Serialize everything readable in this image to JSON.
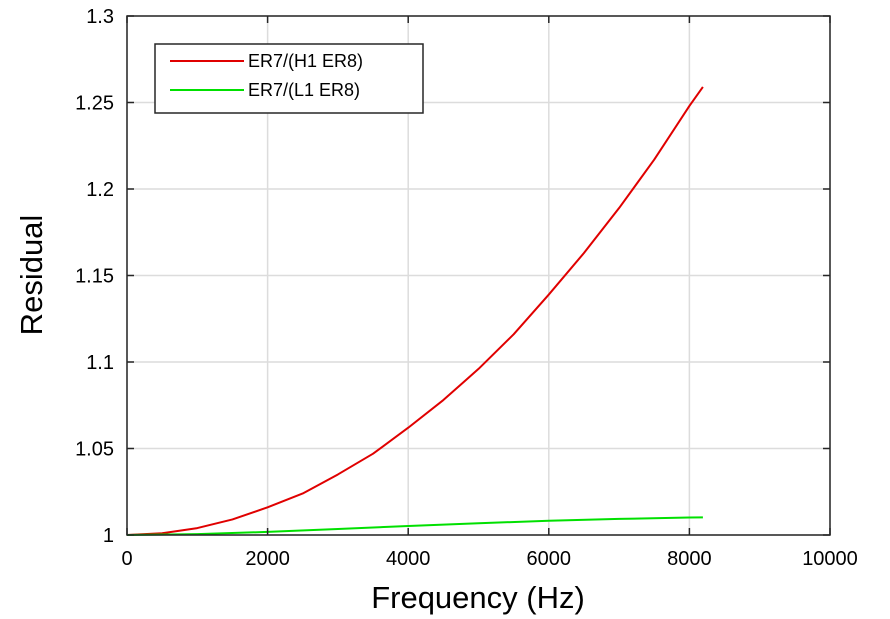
{
  "chart_data": {
    "type": "line",
    "xlabel": "Frequency (Hz)",
    "ylabel": "Residual",
    "xlim": [
      0,
      10000
    ],
    "ylim": [
      1,
      1.3
    ],
    "x_ticks": [
      0,
      2000,
      4000,
      6000,
      8000,
      10000
    ],
    "y_ticks": [
      1,
      1.05,
      1.1,
      1.15,
      1.2,
      1.25,
      1.3
    ],
    "x_tick_labels": [
      "0",
      "2000",
      "4000",
      "6000",
      "8000",
      "10000"
    ],
    "y_tick_labels": [
      "1",
      "1.05",
      "1.1",
      "1.15",
      "1.2",
      "1.25",
      "1.3"
    ],
    "grid": true,
    "legend_position": "top-left",
    "series": [
      {
        "name": "ER7/(H1 ER8)",
        "color": "#e00000",
        "x": [
          0,
          500,
          1000,
          1500,
          2000,
          2500,
          3000,
          3500,
          4000,
          4500,
          5000,
          5500,
          6000,
          6500,
          7000,
          7500,
          8000,
          8192
        ],
        "y": [
          1.0,
          1.001,
          1.004,
          1.009,
          1.016,
          1.024,
          1.035,
          1.047,
          1.062,
          1.078,
          1.096,
          1.116,
          1.139,
          1.163,
          1.189,
          1.217,
          1.248,
          1.259
        ]
      },
      {
        "name": "ER7/(L1 ER8)",
        "color": "#00e000",
        "x": [
          0,
          1000,
          2000,
          3000,
          4000,
          5000,
          6000,
          7000,
          8000,
          8192
        ],
        "y": [
          1.0,
          1.0005,
          1.0018,
          1.0035,
          1.0052,
          1.0068,
          1.0082,
          1.0093,
          1.0101,
          1.0102
        ]
      }
    ]
  }
}
